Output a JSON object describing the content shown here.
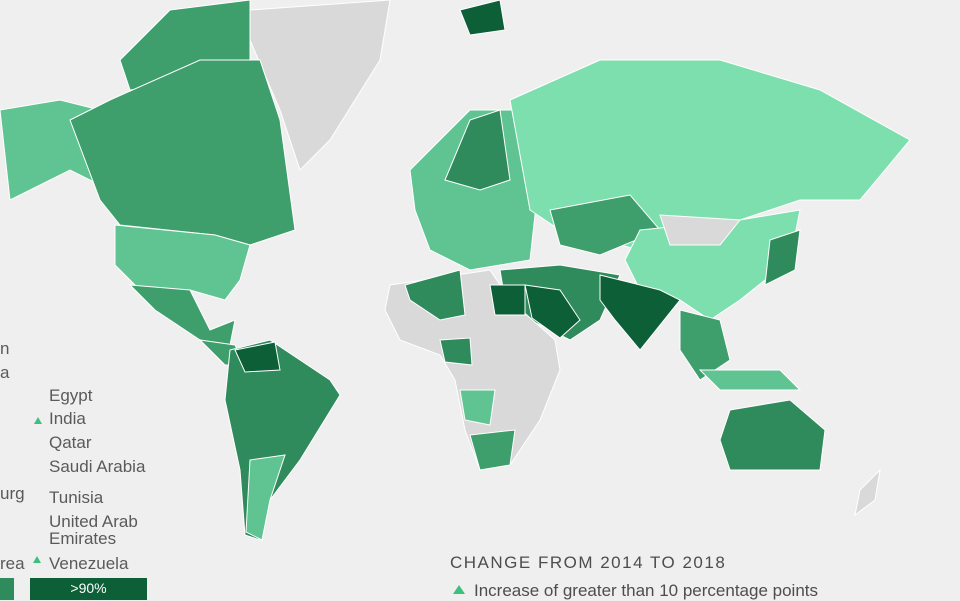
{
  "left_fragments": [
    "n",
    "a",
    "urg",
    "rea"
  ],
  "countries": [
    "Egypt",
    "India",
    "Qatar",
    "Saudi Arabia",
    "Tunisia",
    "United Arab Emirates",
    "Venezuela"
  ],
  "change_legend": {
    "title": "CHANGE FROM 2014 TO 2018",
    "items": [
      "Increase of greater than 10 percentage points"
    ]
  },
  "color_scale": {
    "labels": [
      ">90%"
    ]
  }
}
